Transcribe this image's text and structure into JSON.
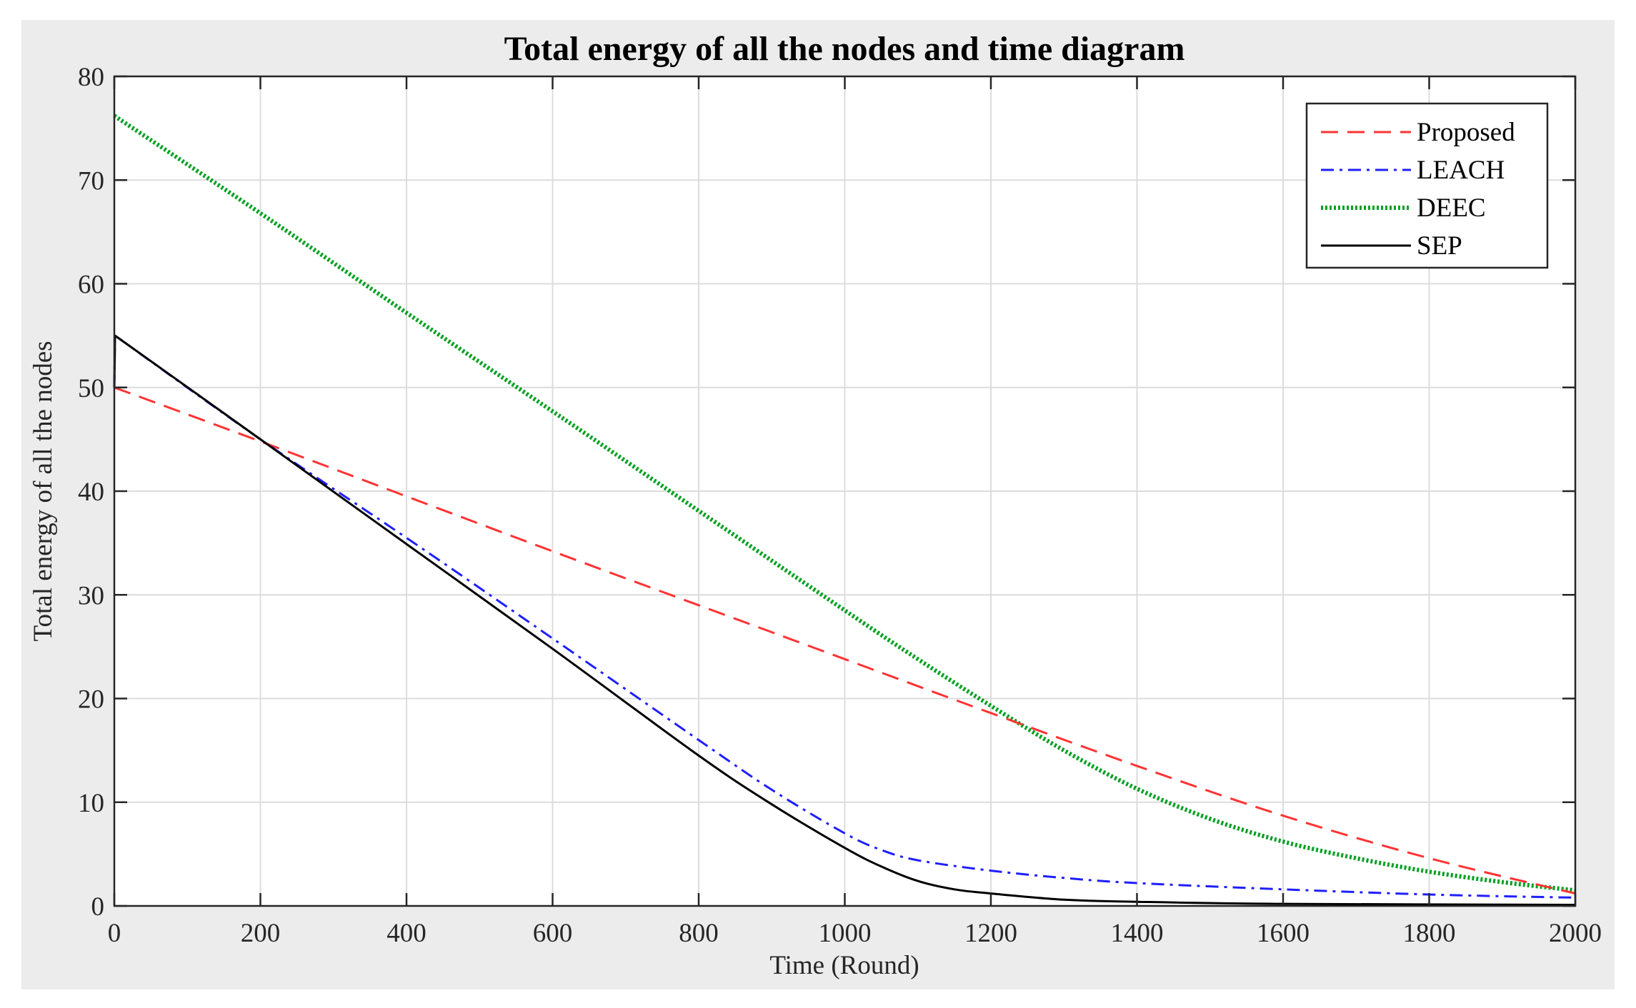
{
  "chart_data": {
    "type": "line",
    "title": "Total energy of all the nodes and time diagram",
    "xlabel": "Time (Round)",
    "ylabel": "Total energy of all the nodes",
    "xlim": [
      0,
      2000
    ],
    "ylim": [
      0,
      80
    ],
    "xticks": [
      0,
      200,
      400,
      600,
      800,
      1000,
      1200,
      1400,
      1600,
      1800,
      2000
    ],
    "yticks": [
      0,
      10,
      20,
      30,
      40,
      50,
      60,
      70,
      80
    ],
    "grid": true,
    "legend_position": "top-right",
    "series": [
      {
        "name": "Proposed",
        "color": "#ff3333",
        "style": "dashed",
        "x": [
          0,
          200,
          400,
          600,
          800,
          1000,
          1200,
          1400,
          1600,
          1800,
          2000
        ],
        "y": [
          50,
          44.8,
          39.5,
          34.2,
          29,
          23.8,
          18.6,
          13.5,
          8.7,
          4.6,
          1.2
        ]
      },
      {
        "name": "LEACH",
        "color": "#1f1fff",
        "style": "dashdot",
        "x": [
          0,
          1,
          200,
          400,
          600,
          800,
          900,
          1000,
          1050,
          1100,
          1200,
          1300,
          1400,
          1600,
          1800,
          2000
        ],
        "y": [
          50,
          55,
          45,
          35.5,
          25.8,
          16,
          11.2,
          7,
          5.4,
          4.4,
          3.4,
          2.7,
          2.2,
          1.6,
          1.1,
          0.8
        ]
      },
      {
        "name": "DEEC",
        "color": "#00a020",
        "style": "dotted",
        "x": [
          0,
          200,
          400,
          600,
          800,
          1000,
          1100,
          1200,
          1300,
          1400,
          1500,
          1600,
          1700,
          1800,
          1900,
          2000
        ],
        "y": [
          76.2,
          66.8,
          57.2,
          47.7,
          38.1,
          28.5,
          23.8,
          19.3,
          15,
          11.3,
          8.4,
          6.2,
          4.6,
          3.3,
          2.3,
          1.5
        ]
      },
      {
        "name": "SEP",
        "color": "#000000",
        "style": "solid",
        "x": [
          0,
          1,
          200,
          400,
          600,
          800,
          900,
          1000,
          1050,
          1100,
          1150,
          1200,
          1300,
          1400,
          1600,
          2000
        ],
        "y": [
          50,
          55,
          45,
          34.9,
          24.8,
          14.5,
          9.8,
          5.6,
          3.8,
          2.4,
          1.6,
          1.2,
          0.6,
          0.4,
          0.2,
          0.1
        ]
      }
    ]
  }
}
